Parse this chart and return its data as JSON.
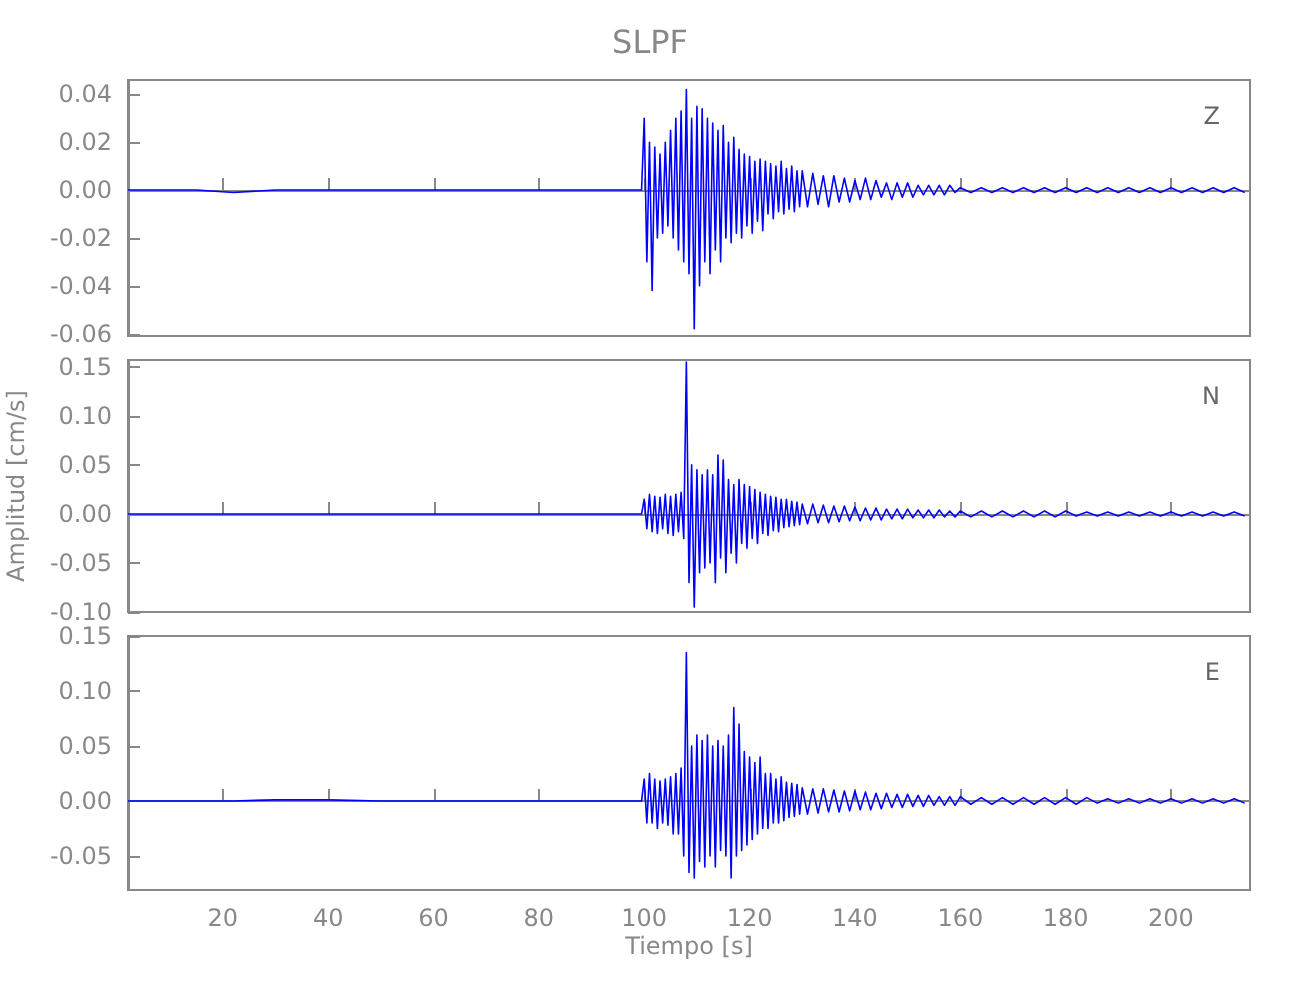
{
  "chart_data": [
    {
      "type": "line",
      "title": "SLPF",
      "annotations": [
        "Z"
      ],
      "tick_labels": "y",
      "x": [
        2,
        8,
        15,
        22,
        30,
        40,
        50,
        60,
        70,
        80,
        90,
        97,
        99.5,
        100,
        100.5,
        101,
        101.5,
        102,
        102.5,
        103,
        103.5,
        104,
        104.5,
        105,
        105.5,
        106,
        106.5,
        107,
        107.5,
        108,
        108.5,
        109,
        109.5,
        110,
        110.5,
        111,
        111.5,
        112,
        112.5,
        113,
        113.5,
        114,
        114.5,
        115,
        115.5,
        116,
        116.5,
        117,
        117.5,
        118,
        118.5,
        119,
        119.5,
        120,
        120.5,
        121,
        121.5,
        122,
        122.5,
        123,
        123.5,
        124,
        124.5,
        125,
        125.5,
        126,
        126.5,
        127,
        127.5,
        128,
        128.5,
        129,
        129.5,
        130,
        131,
        132,
        133,
        134,
        135,
        136,
        137,
        138,
        139,
        140,
        141,
        142,
        143,
        144,
        145,
        146,
        147,
        148,
        149,
        150,
        151,
        152,
        153,
        154,
        155,
        156,
        157,
        158,
        159,
        160,
        162,
        164,
        166,
        168,
        170,
        172,
        174,
        176,
        178,
        180,
        182,
        184,
        186,
        188,
        190,
        192,
        194,
        196,
        198,
        200,
        202,
        204,
        206,
        208,
        210,
        212,
        214
      ],
      "series": [
        {
          "color": "#0000ff",
          "values": [
            0,
            0,
            0,
            -0.001,
            0,
            0,
            0,
            0,
            0,
            0,
            0,
            0,
            0,
            0.03,
            -0.03,
            0.02,
            -0.042,
            0.018,
            -0.02,
            0.015,
            -0.018,
            0.02,
            -0.015,
            0.025,
            -0.02,
            0.03,
            -0.025,
            0.033,
            -0.03,
            0.042,
            -0.035,
            0.03,
            -0.058,
            0.035,
            -0.04,
            0.034,
            -0.03,
            0.03,
            -0.035,
            0.028,
            -0.025,
            0.025,
            -0.03,
            0.027,
            -0.02,
            0.02,
            -0.022,
            0.022,
            -0.018,
            0.017,
            -0.02,
            0.015,
            -0.015,
            0.014,
            -0.018,
            0.012,
            -0.013,
            0.013,
            -0.017,
            0.012,
            -0.01,
            0.011,
            -0.012,
            0.01,
            -0.009,
            0.012,
            -0.01,
            0.009,
            -0.008,
            0.01,
            -0.009,
            0.008,
            -0.007,
            0.008,
            -0.007,
            0.007,
            -0.006,
            0.006,
            -0.007,
            0.006,
            -0.005,
            0.005,
            -0.005,
            0.004,
            -0.004,
            0.005,
            -0.004,
            0.004,
            -0.003,
            0.003,
            -0.004,
            0.003,
            -0.003,
            0.003,
            -0.003,
            0.002,
            -0.002,
            0.002,
            -0.002,
            0.002,
            -0.002,
            0.002,
            -0.001,
            0.001,
            -0.001,
            0.001,
            -0.001,
            0.001,
            -0.001,
            0.001,
            -0.001,
            0.001,
            -0.001,
            0.001,
            -0.001,
            0.001,
            -0.001,
            0.001,
            -0.001,
            0.001,
            -0.001,
            0.001,
            -0.001,
            0.001,
            -0.001,
            0.001,
            -0.001,
            0.001,
            -0.001,
            0.001,
            -0.001
          ]
        }
      ],
      "xlim": [
        2,
        215
      ],
      "ylim": [
        -0.061,
        0.046
      ],
      "xticks": [
        20,
        40,
        60,
        80,
        100,
        120,
        140,
        160,
        180,
        200
      ],
      "yticks": [
        {
          "value": -0.06,
          "label": "-0.06"
        },
        {
          "value": -0.04,
          "label": "-0.04"
        },
        {
          "value": -0.02,
          "label": "-0.02"
        },
        {
          "value": 0,
          "label": "0.00"
        },
        {
          "value": 0.02,
          "label": "0.02"
        },
        {
          "value": 0.04,
          "label": "0.04"
        }
      ]
    },
    {
      "type": "line",
      "ylabel": "Amplitud [cm/s]",
      "annotations": [
        "N"
      ],
      "tick_labels": "y",
      "x": [
        2,
        8,
        15,
        22,
        30,
        40,
        50,
        60,
        70,
        80,
        90,
        97,
        99.5,
        100,
        100.5,
        101,
        101.5,
        102,
        102.5,
        103,
        103.5,
        104,
        104.5,
        105,
        105.5,
        106,
        106.5,
        107,
        107.5,
        108,
        108.5,
        109,
        109.5,
        110,
        110.5,
        111,
        111.5,
        112,
        112.5,
        113,
        113.5,
        114,
        114.5,
        115,
        115.5,
        116,
        116.5,
        117,
        117.5,
        118,
        118.5,
        119,
        119.5,
        120,
        120.5,
        121,
        121.5,
        122,
        122.5,
        123,
        123.5,
        124,
        124.5,
        125,
        125.5,
        126,
        126.5,
        127,
        127.5,
        128,
        128.5,
        129,
        129.5,
        130,
        131,
        132,
        133,
        134,
        135,
        136,
        137,
        138,
        139,
        140,
        141,
        142,
        143,
        144,
        145,
        146,
        147,
        148,
        149,
        150,
        151,
        152,
        153,
        154,
        155,
        156,
        157,
        158,
        159,
        160,
        162,
        164,
        166,
        168,
        170,
        172,
        174,
        176,
        178,
        180,
        182,
        184,
        186,
        188,
        190,
        192,
        194,
        196,
        198,
        200,
        202,
        204,
        206,
        208,
        210,
        212,
        214
      ],
      "series": [
        {
          "color": "#0000ff",
          "values": [
            0,
            0,
            0,
            0,
            0,
            0,
            0,
            0,
            0,
            0,
            0,
            0,
            0,
            0.015,
            -0.015,
            0.02,
            -0.018,
            0.018,
            -0.02,
            0.017,
            -0.015,
            0.02,
            -0.02,
            0.018,
            -0.022,
            0.02,
            -0.018,
            0.022,
            -0.025,
            0.155,
            -0.07,
            0.05,
            -0.095,
            0.045,
            -0.06,
            0.04,
            -0.055,
            0.045,
            -0.05,
            0.04,
            -0.07,
            0.06,
            -0.045,
            0.055,
            -0.06,
            0.035,
            -0.04,
            0.03,
            -0.05,
            0.035,
            -0.03,
            0.03,
            -0.035,
            0.028,
            -0.025,
            0.025,
            -0.03,
            0.022,
            -0.02,
            0.02,
            -0.022,
            0.018,
            -0.017,
            0.017,
            -0.018,
            0.015,
            -0.014,
            0.015,
            -0.013,
            0.013,
            -0.012,
            0.012,
            -0.011,
            0.01,
            -0.01,
            0.01,
            -0.009,
            0.009,
            -0.009,
            0.008,
            -0.008,
            0.008,
            -0.007,
            0.007,
            -0.007,
            0.006,
            -0.006,
            0.006,
            -0.006,
            0.005,
            -0.005,
            0.005,
            -0.005,
            0.005,
            -0.004,
            0.004,
            -0.004,
            0.004,
            -0.004,
            0.004,
            -0.003,
            0.003,
            -0.003,
            0.003,
            -0.003,
            0.003,
            -0.003,
            0.003,
            -0.003,
            0.003,
            -0.003,
            0.003,
            -0.003,
            0.003,
            -0.002,
            0.002,
            -0.002,
            0.002,
            -0.002,
            0.002,
            -0.002,
            0.002,
            -0.002,
            0.002,
            -0.002,
            0.002,
            -0.002,
            0.002,
            -0.002,
            0.002,
            -0.002
          ]
        }
      ],
      "xlim": [
        2,
        215
      ],
      "ylim": [
        -0.1,
        0.157
      ],
      "xticks": [
        20,
        40,
        60,
        80,
        100,
        120,
        140,
        160,
        180,
        200
      ],
      "yticks": [
        {
          "value": -0.1,
          "label": "-0.10"
        },
        {
          "value": -0.05,
          "label": "-0.05"
        },
        {
          "value": 0,
          "label": "0.00"
        },
        {
          "value": 0.05,
          "label": "0.05"
        },
        {
          "value": 0.1,
          "label": "0.10"
        },
        {
          "value": 0.15,
          "label": "0.15"
        }
      ]
    },
    {
      "type": "line",
      "xlabel": "Tiempo [s]",
      "annotations": [
        "E"
      ],
      "x": [
        2,
        8,
        15,
        22,
        30,
        40,
        50,
        60,
        70,
        80,
        90,
        97,
        99.5,
        100,
        100.5,
        101,
        101.5,
        102,
        102.5,
        103,
        103.5,
        104,
        104.5,
        105,
        105.5,
        106,
        106.5,
        107,
        107.5,
        108,
        108.5,
        109,
        109.5,
        110,
        110.5,
        111,
        111.5,
        112,
        112.5,
        113,
        113.5,
        114,
        114.5,
        115,
        115.5,
        116,
        116.5,
        117,
        117.5,
        118,
        118.5,
        119,
        119.5,
        120,
        120.5,
        121,
        121.5,
        122,
        122.5,
        123,
        123.5,
        124,
        124.5,
        125,
        125.5,
        126,
        126.5,
        127,
        127.5,
        128,
        128.5,
        129,
        129.5,
        130,
        131,
        132,
        133,
        134,
        135,
        136,
        137,
        138,
        139,
        140,
        141,
        142,
        143,
        144,
        145,
        146,
        147,
        148,
        149,
        150,
        151,
        152,
        153,
        154,
        155,
        156,
        157,
        158,
        159,
        160,
        162,
        164,
        166,
        168,
        170,
        172,
        174,
        176,
        178,
        180,
        182,
        184,
        186,
        188,
        190,
        192,
        194,
        196,
        198,
        200,
        202,
        204,
        206,
        208,
        210,
        212,
        214
      ],
      "series": [
        {
          "color": "#0000ff",
          "values": [
            0,
            0,
            0,
            0,
            0.001,
            0.001,
            0,
            0,
            0,
            0,
            0,
            0,
            0,
            0.02,
            -0.02,
            0.025,
            -0.02,
            0.02,
            -0.025,
            0.018,
            -0.02,
            0.02,
            -0.022,
            0.022,
            -0.03,
            0.025,
            -0.03,
            0.03,
            -0.05,
            0.135,
            -0.065,
            0.05,
            -0.07,
            0.06,
            -0.055,
            0.055,
            -0.06,
            0.06,
            -0.05,
            0.05,
            -0.06,
            0.055,
            -0.045,
            0.05,
            -0.05,
            0.06,
            -0.07,
            0.085,
            -0.05,
            0.07,
            -0.045,
            0.045,
            -0.04,
            0.04,
            -0.035,
            0.035,
            -0.03,
            0.04,
            -0.025,
            0.025,
            -0.025,
            0.025,
            -0.02,
            0.02,
            -0.02,
            0.022,
            -0.018,
            0.017,
            -0.015,
            0.016,
            -0.014,
            0.015,
            -0.012,
            0.012,
            -0.012,
            0.011,
            -0.011,
            0.011,
            -0.01,
            0.01,
            -0.01,
            0.009,
            -0.009,
            0.009,
            -0.008,
            0.008,
            -0.008,
            0.007,
            -0.007,
            0.007,
            -0.006,
            0.006,
            -0.006,
            0.006,
            -0.005,
            0.005,
            -0.005,
            0.005,
            -0.004,
            0.004,
            -0.004,
            0.004,
            -0.004,
            0.004,
            -0.003,
            0.003,
            -0.003,
            0.003,
            -0.003,
            0.003,
            -0.003,
            0.003,
            -0.003,
            0.003,
            -0.003,
            0.003,
            -0.002,
            0.002,
            -0.002,
            0.002,
            -0.002,
            0.002,
            -0.002,
            0.002,
            -0.002,
            0.002,
            -0.002,
            0.002,
            -0.002,
            0.002,
            -0.002
          ]
        }
      ],
      "xlim": [
        2,
        215
      ],
      "ylim": [
        -0.081,
        0.15
      ],
      "xticks": [
        20,
        40,
        60,
        80,
        100,
        120,
        140,
        160,
        180,
        200
      ],
      "yticks": [
        {
          "value": -0.05,
          "label": "-0.05"
        },
        {
          "value": 0,
          "label": "0.00"
        },
        {
          "value": 0.05,
          "label": "0.05"
        },
        {
          "value": 0.1,
          "label": "0.10"
        },
        {
          "value": 0.15,
          "label": "0.15"
        }
      ]
    }
  ]
}
